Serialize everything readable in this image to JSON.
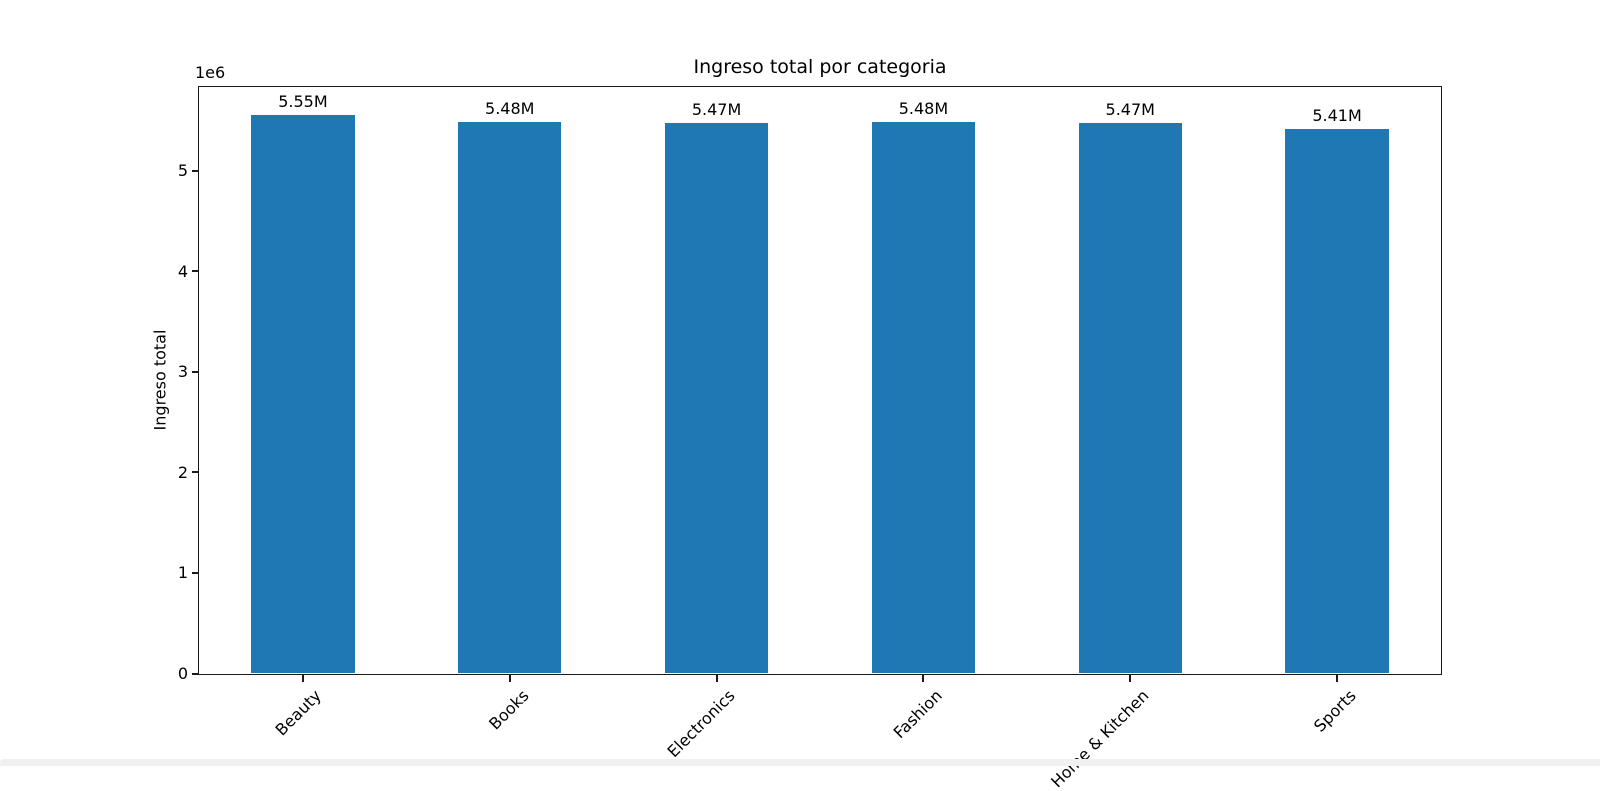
{
  "window": {
    "background_color": "#ffffff",
    "bottom_strip_color": "#f0f0f0"
  },
  "chart_data": {
    "type": "bar",
    "title": "Ingreso total por categoria",
    "xlabel": "",
    "ylabel": "Ingreso total",
    "y_offset_text": "1e6",
    "categories": [
      "Beauty",
      "Books",
      "Electronics",
      "Fashion",
      "Home & Kitchen",
      "Sports"
    ],
    "values": [
      5550000,
      5480000,
      5470000,
      5480000,
      5470000,
      5410000
    ],
    "value_labels": [
      "5.55M",
      "5.48M",
      "5.47M",
      "5.48M",
      "5.47M",
      "5.41M"
    ],
    "yticks": [
      0,
      1,
      2,
      3,
      4,
      5
    ],
    "ytick_unit": 1000000,
    "ylim": [
      0,
      5827500
    ],
    "bar_color": "#1f77b4",
    "grid": false,
    "legend": null,
    "xtick_rotation_deg": 45
  }
}
